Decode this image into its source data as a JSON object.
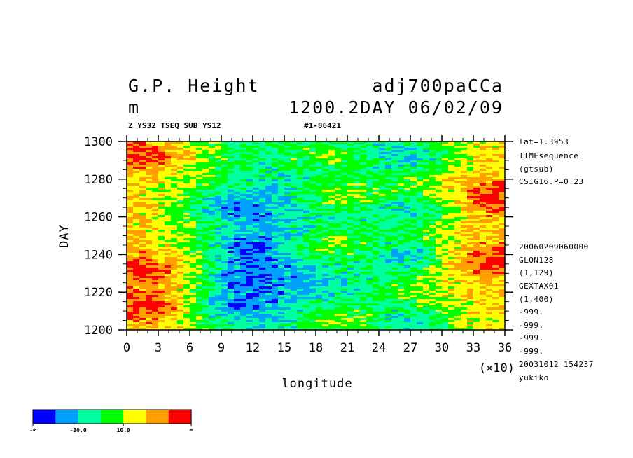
{
  "header": {
    "title_left": "G.P. Height",
    "title_right": "adj700paCCa",
    "units": "m",
    "date_info": "1200.2DAY 06/02/09",
    "subtitle": "Z YS32 TSEQ SUB YS12",
    "run_id": "#1-86421"
  },
  "side_notes": [
    "lat=1.3953",
    "TIMEsequence",
    "(gtsub)",
    "CSIG16.P=0.23",
    "20060209060000",
    "GLON128",
    "(1,129)",
    "GEXTAX01",
    "(1,400)",
    "-999.",
    "-999.",
    "-999.",
    "-999.",
    "20031012 154237",
    "yukiko"
  ],
  "colorbar": {
    "colors": [
      "#0000ff",
      "#00a0ff",
      "#00ffa0",
      "#00ff00",
      "#ffff00",
      "#ffa000",
      "#ff0000"
    ],
    "labels": [
      "-∞",
      "-30.0",
      "10.0",
      "∞"
    ]
  },
  "chart_data": {
    "type": "heatmap",
    "title": "G.P. Height",
    "xlabel": "longitude",
    "ylabel": "DAY",
    "x_multiplier": "(×10)",
    "xlim": [
      0,
      36
    ],
    "ylim": [
      1200,
      1300
    ],
    "xticks": [
      "0",
      "3",
      "6",
      "9",
      "12",
      "15",
      "18",
      "21",
      "24",
      "27",
      "30",
      "33",
      "36"
    ],
    "yticks": [
      "1200",
      "1220",
      "1240",
      "1260",
      "1280",
      "1300"
    ],
    "colorbar_levels": [
      "-∞",
      "-30.0",
      "10.0",
      "∞"
    ],
    "anomaly_centers": [
      {
        "x": 1.5,
        "y": 1293,
        "sign": "positive"
      },
      {
        "x": 2.0,
        "y": 1232,
        "sign": "positive"
      },
      {
        "x": 2.5,
        "y": 1212,
        "sign": "positive"
      },
      {
        "x": 10.0,
        "y": 1265,
        "sign": "negative"
      },
      {
        "x": 11.5,
        "y": 1244,
        "sign": "negative"
      },
      {
        "x": 11.0,
        "y": 1228,
        "sign": "negative"
      },
      {
        "x": 10.0,
        "y": 1212,
        "sign": "negative"
      },
      {
        "x": 18.5,
        "y": 1292,
        "sign": "positive"
      },
      {
        "x": 20.5,
        "y": 1271,
        "sign": "positive"
      },
      {
        "x": 19.5,
        "y": 1245,
        "sign": "positive"
      },
      {
        "x": 20.0,
        "y": 1205,
        "sign": "positive"
      },
      {
        "x": 27.5,
        "y": 1292,
        "sign": "negative"
      },
      {
        "x": 27.5,
        "y": 1265,
        "sign": "negative"
      },
      {
        "x": 27.0,
        "y": 1240,
        "sign": "negative"
      },
      {
        "x": 27.5,
        "y": 1204,
        "sign": "negative"
      },
      {
        "x": 35.0,
        "y": 1270,
        "sign": "positive"
      },
      {
        "x": 35.0,
        "y": 1238,
        "sign": "positive"
      }
    ]
  }
}
